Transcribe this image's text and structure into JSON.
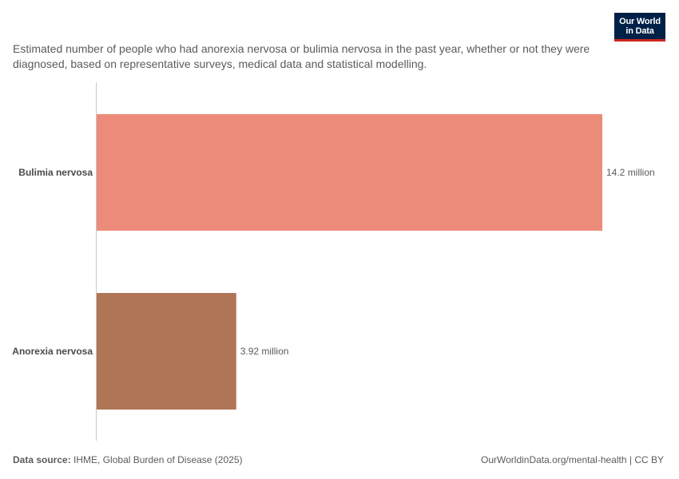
{
  "logo": {
    "line1": "Our World",
    "line2": "in Data"
  },
  "subtitle": "Estimated number of people who had anorexia nervosa or bulimia nervosa in the past year, whether or not they were diagnosed, based on representative surveys, medical data and statistical modelling.",
  "footer": {
    "source_label": "Data source:",
    "source_text": "IHME, Global Burden of Disease (2025)",
    "link": "OurWorldinData.org/mental-health | CC BY"
  },
  "chart_data": {
    "type": "bar",
    "orientation": "horizontal",
    "categories": [
      "Bulimia nervosa",
      "Anorexia nervosa"
    ],
    "values": [
      14.2,
      3.92
    ],
    "value_labels": [
      "14.2 million",
      "3.92 million"
    ],
    "unit": "million",
    "colors": [
      "#ec8b7a",
      "#b07556"
    ],
    "xlim": [
      0,
      14.2
    ],
    "grid": false
  }
}
